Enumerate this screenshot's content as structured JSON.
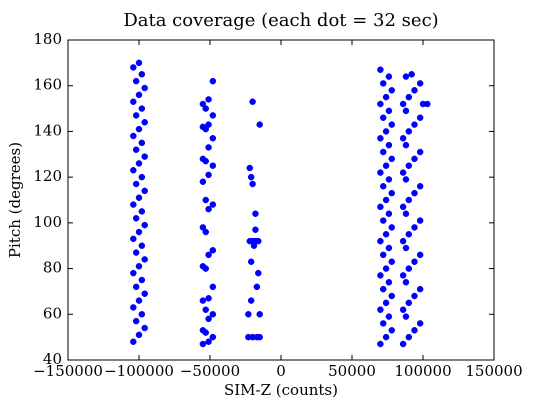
{
  "chart_data": {
    "type": "scatter",
    "title": "Data coverage (each dot = 32 sec)",
    "x_label": "SIM-Z (counts)",
    "y_label": "Pitch (degrees)",
    "color": "#0000ff",
    "xlim": [
      -150000,
      150000
    ],
    "ylim": [
      40,
      180
    ],
    "xticks": [
      {
        "value": -150000,
        "label": "−150000"
      },
      {
        "value": -100000,
        "label": "−100000"
      },
      {
        "value": -50000,
        "label": "−50000"
      },
      0,
      50000,
      100000,
      150000
    ],
    "yticks": [
      40,
      60,
      80,
      100,
      120,
      140,
      160,
      180
    ],
    "x": [
      -104000,
      -100000,
      -96000,
      -102000,
      -98000,
      -104000,
      -100000,
      -96000,
      -102000,
      -98000,
      -104000,
      -100000,
      -96000,
      -102000,
      -98000,
      -104000,
      -100000,
      -96000,
      -102000,
      -98000,
      -104000,
      -100000,
      -96000,
      -102000,
      -98000,
      -104000,
      -100000,
      -96000,
      -102000,
      -98000,
      -104000,
      -100000,
      -96000,
      -102000,
      -98000,
      -104000,
      -100000,
      -96000,
      -102000,
      -98000,
      -104000,
      -100000,
      -55000,
      -51000,
      -48000,
      -53000,
      -55000,
      -51000,
      -48000,
      -53000,
      -55000,
      -51000,
      -48000,
      -53000,
      -55000,
      -51000,
      -48000,
      -53000,
      -55000,
      -51000,
      -48000,
      -53000,
      -55000,
      -51000,
      -48000,
      -53000,
      -55000,
      -51000,
      -48000,
      -53000,
      -55000,
      -51000,
      -48000,
      -53000,
      -55000,
      -51000,
      -48000,
      -20000,
      -22000,
      -21000,
      -15000,
      -20000,
      -18000,
      -18000,
      -22000,
      -20000,
      -18000,
      -16000,
      -19000,
      -21000,
      -16000,
      -17000,
      -15000,
      -23000,
      -23000,
      -20000,
      -17000,
      -15000,
      -21000,
      70000,
      74000,
      78000,
      72000,
      76000,
      70000,
      74000,
      78000,
      72000,
      76000,
      70000,
      74000,
      78000,
      72000,
      76000,
      70000,
      74000,
      78000,
      72000,
      76000,
      70000,
      74000,
      78000,
      72000,
      76000,
      70000,
      74000,
      78000,
      72000,
      76000,
      70000,
      74000,
      78000,
      72000,
      76000,
      70000,
      74000,
      78000,
      72000,
      76000,
      70000,
      86000,
      90000,
      94000,
      98000,
      88000,
      86000,
      90000,
      94000,
      98000,
      88000,
      86000,
      90000,
      94000,
      98000,
      88000,
      86000,
      90000,
      94000,
      98000,
      88000,
      86000,
      90000,
      94000,
      98000,
      88000,
      86000,
      90000,
      94000,
      98000,
      88000,
      86000,
      90000,
      94000,
      98000,
      88000,
      86000,
      90000,
      94000,
      98000,
      88000,
      100000,
      103000,
      92000
    ],
    "values": [
      48,
      51,
      54,
      57,
      60,
      63,
      66,
      69,
      72,
      75,
      78,
      81,
      84,
      87,
      90,
      93,
      96,
      99,
      102,
      105,
      108,
      111,
      114,
      117,
      120,
      123,
      126,
      129,
      132,
      135,
      138,
      141,
      144,
      147,
      150,
      153,
      156,
      159,
      162,
      165,
      168,
      170,
      47,
      48,
      50,
      52,
      53,
      58,
      60,
      62,
      66,
      67,
      72,
      80,
      81,
      86,
      88,
      96,
      98,
      106,
      108,
      110,
      118,
      121,
      125,
      127,
      128,
      133,
      137,
      141,
      142,
      143,
      147,
      150,
      152,
      154,
      162,
      153,
      124,
      120,
      143,
      117,
      104,
      97,
      92,
      92,
      92,
      92,
      90,
      83,
      78,
      72,
      60,
      60,
      50,
      50,
      50,
      50,
      66,
      47,
      50,
      53,
      56,
      59,
      62,
      65,
      68,
      71,
      74,
      77,
      80,
      83,
      86,
      89,
      92,
      95,
      98,
      101,
      104,
      107,
      110,
      113,
      116,
      119,
      122,
      125,
      128,
      131,
      134,
      137,
      140,
      143,
      146,
      149,
      152,
      155,
      158,
      161,
      164,
      167,
      47,
      50,
      53,
      56,
      59,
      62,
      65,
      68,
      71,
      74,
      77,
      80,
      83,
      86,
      89,
      92,
      95,
      98,
      101,
      104,
      107,
      110,
      113,
      116,
      119,
      122,
      125,
      128,
      131,
      134,
      137,
      140,
      143,
      146,
      149,
      152,
      155,
      158,
      161,
      164,
      152,
      152,
      165
    ]
  }
}
